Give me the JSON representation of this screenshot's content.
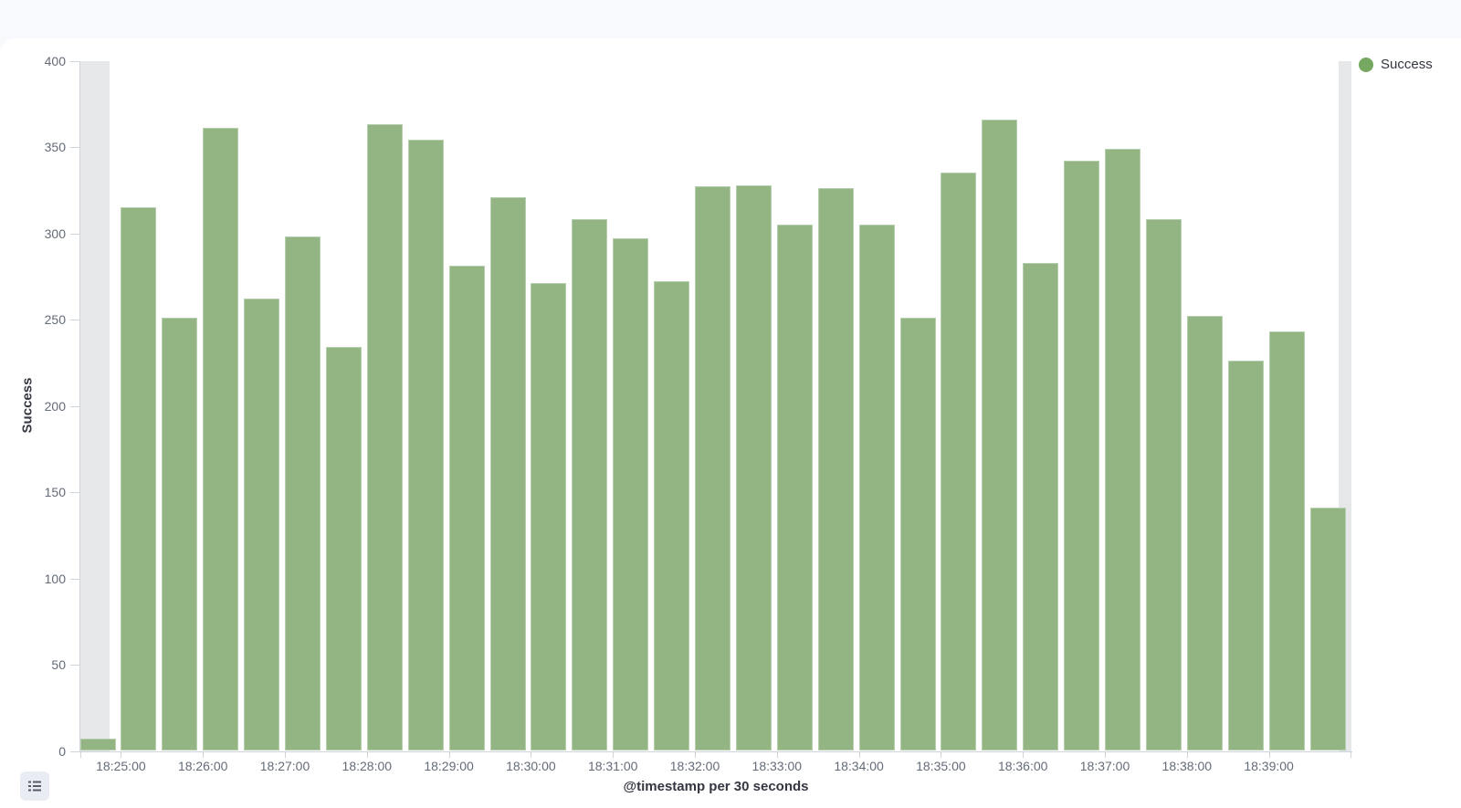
{
  "colors": {
    "page_background": "#f8f9fc",
    "panel_background": "#ffffff",
    "bar_fill": "#93b584",
    "legend_dot": "#77a862",
    "partial_bucket_shade": "#e6e7e9",
    "axis_line": "#cfd3da",
    "tick_label_text": "#646b78",
    "axis_title_text": "#343741"
  },
  "legend": {
    "position": "top-right",
    "items": [
      {
        "label": "Success",
        "color": "#77a862",
        "marker": "dot-icon"
      }
    ]
  },
  "controls": {
    "legend_toggle": {
      "icon": "list-icon"
    }
  },
  "chart_data": {
    "type": "bar",
    "title": "",
    "xlabel": "@timestamp per 30 seconds",
    "ylabel": "Success",
    "ylim": [
      0,
      400
    ],
    "grid": false,
    "bucket_seconds": 30,
    "y_tick_values": [
      0,
      50,
      100,
      150,
      200,
      250,
      300,
      350,
      400
    ],
    "x_tick_labels": [
      "18:25:00",
      "18:26:00",
      "18:27:00",
      "18:28:00",
      "18:29:00",
      "18:30:00",
      "18:31:00",
      "18:32:00",
      "18:33:00",
      "18:34:00",
      "18:35:00",
      "18:36:00",
      "18:37:00",
      "18:38:00",
      "18:39:00"
    ],
    "categories": [
      "18:24:30",
      "18:25:00",
      "18:25:30",
      "18:26:00",
      "18:26:30",
      "18:27:00",
      "18:27:30",
      "18:28:00",
      "18:28:30",
      "18:29:00",
      "18:29:30",
      "18:30:00",
      "18:30:30",
      "18:31:00",
      "18:31:30",
      "18:32:00",
      "18:32:30",
      "18:33:00",
      "18:33:30",
      "18:34:00",
      "18:34:30",
      "18:35:00",
      "18:35:30",
      "18:36:00",
      "18:36:30",
      "18:37:00",
      "18:37:30",
      "18:38:00",
      "18:38:30",
      "18:39:00",
      "18:39:30"
    ],
    "series": [
      {
        "name": "Success",
        "color": "#93b584",
        "values": [
          7,
          315,
          251,
          361,
          262,
          298,
          234,
          363,
          354,
          281,
          321,
          271,
          308,
          297,
          272,
          327,
          328,
          305,
          326,
          305,
          251,
          335,
          366,
          283,
          342,
          349,
          308,
          252,
          226,
          243,
          141
        ]
      }
    ],
    "partial_buckets": {
      "first": true,
      "last": true
    },
    "legend_position": "top-right"
  }
}
